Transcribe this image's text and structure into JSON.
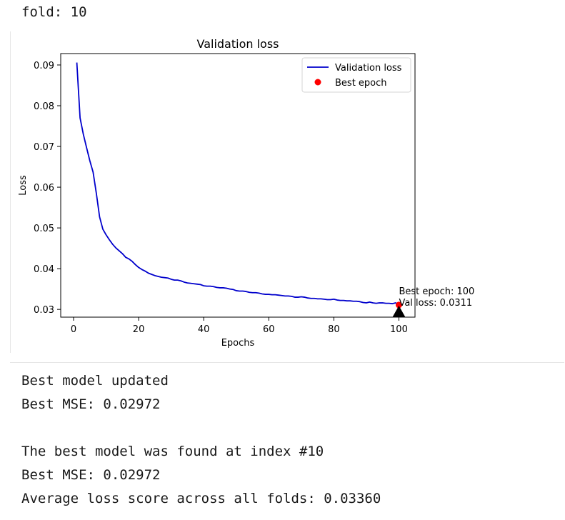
{
  "log": {
    "fold_line": "fold: 10",
    "after_lines": [
      "Best model updated",
      "Best MSE: 0.02972",
      "The best model was found at index #10",
      "Best MSE: 0.02972",
      "Average loss score across all folds: 0.03360"
    ]
  },
  "chart_data": {
    "type": "line",
    "title": "Validation loss",
    "xlabel": "Epochs",
    "ylabel": "Loss",
    "xlim": [
      -3.95,
      104.95
    ],
    "ylim": [
      0.0281,
      0.0928
    ],
    "xticks": [
      0,
      20,
      40,
      60,
      80,
      100
    ],
    "xtick_labels": [
      "0",
      "20",
      "40",
      "60",
      "80",
      "100"
    ],
    "yticks": [
      0.03,
      0.04,
      0.05,
      0.06,
      0.07,
      0.08,
      0.09
    ],
    "ytick_labels": [
      "0.03",
      "0.04",
      "0.05",
      "0.06",
      "0.07",
      "0.08",
      "0.09"
    ],
    "grid": false,
    "legend_position": "upper right",
    "series": [
      {
        "name": "Validation loss",
        "color": "#0000cc",
        "x": [
          1,
          2,
          3,
          4,
          5,
          6,
          7,
          8,
          9,
          10,
          11,
          12,
          13,
          14,
          15,
          16,
          17,
          18,
          19,
          20,
          21,
          22,
          23,
          24,
          25,
          26,
          27,
          28,
          29,
          30,
          31,
          32,
          33,
          34,
          35,
          36,
          37,
          38,
          39,
          40,
          41,
          42,
          43,
          44,
          45,
          46,
          47,
          48,
          49,
          50,
          51,
          52,
          53,
          54,
          55,
          56,
          57,
          58,
          59,
          60,
          61,
          62,
          63,
          64,
          65,
          66,
          67,
          68,
          69,
          70,
          71,
          72,
          73,
          74,
          75,
          76,
          77,
          78,
          79,
          80,
          81,
          82,
          83,
          84,
          85,
          86,
          87,
          88,
          89,
          90,
          91,
          92,
          93,
          94,
          95,
          96,
          97,
          98,
          99,
          100
        ],
        "y": [
          0.0906,
          0.077,
          0.073,
          0.0697,
          0.0665,
          0.0637,
          0.0585,
          0.0527,
          0.0497,
          0.0483,
          0.0471,
          0.046,
          0.0451,
          0.0444,
          0.0437,
          0.0428,
          0.0424,
          0.0418,
          0.041,
          0.0403,
          0.0398,
          0.0394,
          0.0389,
          0.0386,
          0.0383,
          0.0381,
          0.0379,
          0.0378,
          0.0377,
          0.0374,
          0.0372,
          0.0372,
          0.037,
          0.0367,
          0.0365,
          0.0364,
          0.0363,
          0.0362,
          0.0361,
          0.0358,
          0.0357,
          0.0357,
          0.0356,
          0.0354,
          0.0353,
          0.0353,
          0.0352,
          0.035,
          0.0349,
          0.0346,
          0.0345,
          0.0345,
          0.0344,
          0.0342,
          0.0341,
          0.0341,
          0.034,
          0.0338,
          0.0337,
          0.0337,
          0.0336,
          0.0336,
          0.0335,
          0.0334,
          0.0333,
          0.0333,
          0.0332,
          0.033,
          0.033,
          0.0331,
          0.033,
          0.0328,
          0.0327,
          0.0327,
          0.0326,
          0.0326,
          0.0325,
          0.0324,
          0.0324,
          0.0325,
          0.0323,
          0.0322,
          0.0322,
          0.0321,
          0.0321,
          0.032,
          0.032,
          0.0319,
          0.0317,
          0.0316,
          0.0318,
          0.0316,
          0.0315,
          0.0316,
          0.0316,
          0.0315,
          0.0315,
          0.0314,
          0.0316,
          0.0311
        ]
      },
      {
        "name": "Best epoch",
        "color": "#ff0000",
        "x": [
          100
        ],
        "y": [
          0.0311
        ]
      }
    ],
    "annotation": {
      "lines": [
        "Best epoch: 100",
        "Val loss: 0.0311"
      ],
      "arrow_color": "#000000"
    }
  }
}
